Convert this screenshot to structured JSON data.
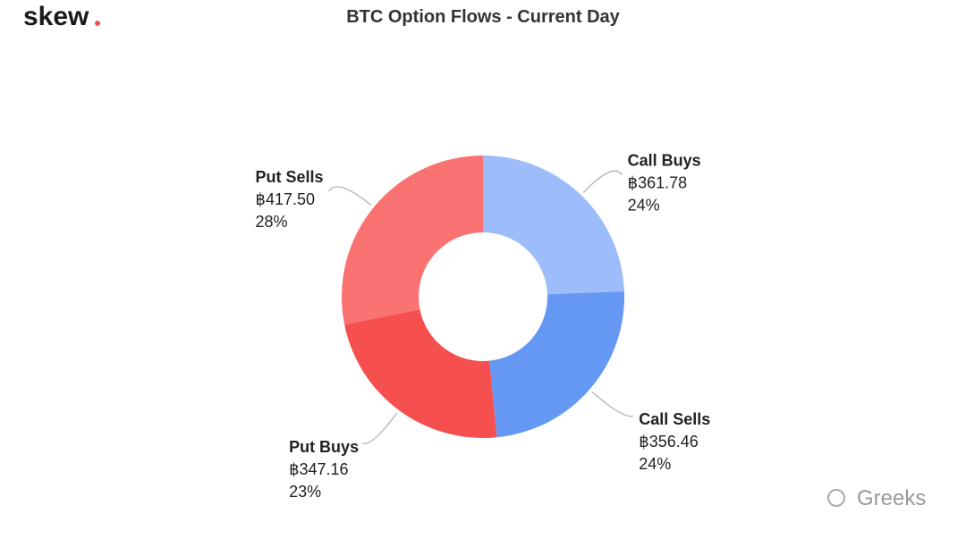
{
  "chart_data": {
    "type": "donut",
    "title": "BTC Option Flows - Current Day",
    "logo": "skew",
    "watermark": "Greeks",
    "categories": [
      "Call Buys",
      "Call Sells",
      "Put Buys",
      "Put Sells"
    ],
    "values": [
      361.78,
      356.46,
      347.16,
      417.5
    ],
    "value_labels": [
      "฿361.78",
      "฿356.46",
      "฿347.16",
      "฿417.50"
    ],
    "percent_labels": [
      "24%",
      "24%",
      "23%",
      "28%"
    ],
    "colors": [
      "#9dbcfa",
      "#6598f3",
      "#f5504f",
      "#fb7272"
    ]
  }
}
